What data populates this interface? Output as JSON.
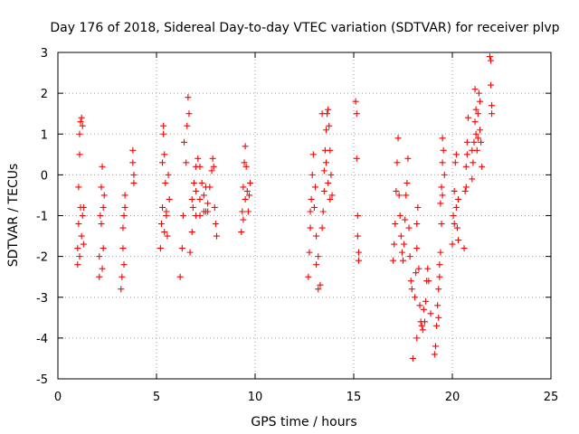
{
  "chart_data": {
    "type": "scatter",
    "title": "Day 176 of 2018, Sidereal Day-to-day VTEC variation (SDTVAR) for receiver plvp",
    "xlabel": "GPS time / hours",
    "ylabel": "SDTVAR / TECUs",
    "xlim": [
      0,
      25
    ],
    "ylim": [
      -5,
      3
    ],
    "xticks": [
      "0",
      "5",
      "10",
      "15",
      "20",
      "25"
    ],
    "yticks": [
      "-5",
      "-4",
      "-3",
      "-2",
      "-1",
      "0",
      "1",
      "2",
      "3"
    ],
    "grid": true,
    "marker": "+",
    "color": "#ff0000",
    "series": [
      {
        "name": "SDTVAR",
        "points": [
          [
            1.0,
            -2.2
          ],
          [
            1.0,
            -1.8
          ],
          [
            1.05,
            -1.2
          ],
          [
            1.05,
            -0.3
          ],
          [
            1.1,
            0.5
          ],
          [
            1.1,
            1.0
          ],
          [
            1.15,
            1.3
          ],
          [
            1.2,
            1.4
          ],
          [
            1.2,
            -1.5
          ],
          [
            1.25,
            -1.0
          ],
          [
            1.3,
            -0.8
          ],
          [
            1.3,
            -1.7
          ],
          [
            1.1,
            -2.0
          ],
          [
            1.15,
            -0.8
          ],
          [
            1.25,
            1.2
          ],
          [
            2.1,
            -2.5
          ],
          [
            2.1,
            -2.0
          ],
          [
            2.15,
            -1.0
          ],
          [
            2.2,
            -0.3
          ],
          [
            2.25,
            0.2
          ],
          [
            2.3,
            -0.8
          ],
          [
            2.3,
            -1.8
          ],
          [
            2.2,
            -1.2
          ],
          [
            2.25,
            -2.3
          ],
          [
            2.35,
            -0.5
          ],
          [
            3.2,
            -2.8
          ],
          [
            3.25,
            -2.5
          ],
          [
            3.3,
            -1.8
          ],
          [
            3.35,
            -1.0
          ],
          [
            3.4,
            -0.5
          ],
          [
            3.35,
            -2.2
          ],
          [
            3.3,
            -1.3
          ],
          [
            3.4,
            -0.8
          ],
          [
            3.8,
            0.6
          ],
          [
            3.8,
            0.3
          ],
          [
            3.85,
            0.0
          ],
          [
            3.85,
            -0.2
          ],
          [
            5.2,
            -1.8
          ],
          [
            5.25,
            -1.2
          ],
          [
            5.3,
            -0.8
          ],
          [
            5.3,
            0.3
          ],
          [
            5.35,
            1.0
          ],
          [
            5.35,
            1.2
          ],
          [
            5.4,
            0.5
          ],
          [
            5.45,
            -0.2
          ],
          [
            5.5,
            -1.0
          ],
          [
            5.55,
            -1.5
          ],
          [
            5.6,
            0.0
          ],
          [
            5.65,
            -0.6
          ],
          [
            5.5,
            -0.9
          ],
          [
            5.4,
            -1.4
          ],
          [
            6.2,
            -2.5
          ],
          [
            6.3,
            -1.8
          ],
          [
            6.35,
            -1.0
          ],
          [
            6.4,
            0.8
          ],
          [
            6.5,
            0.3
          ],
          [
            6.55,
            1.2
          ],
          [
            6.6,
            1.9
          ],
          [
            6.65,
            1.5
          ],
          [
            6.7,
            -1.9
          ],
          [
            6.8,
            -1.4
          ],
          [
            6.85,
            -0.8
          ],
          [
            6.9,
            -0.2
          ],
          [
            7.0,
            0.2
          ],
          [
            7.1,
            0.4
          ],
          [
            7.2,
            0.2
          ],
          [
            7.3,
            -0.2
          ],
          [
            7.4,
            -0.5
          ],
          [
            7.5,
            -0.9
          ],
          [
            7.6,
            -0.7
          ],
          [
            7.7,
            -0.3
          ],
          [
            7.8,
            0.1
          ],
          [
            7.85,
            0.4
          ],
          [
            7.9,
            0.2
          ],
          [
            7.95,
            -0.8
          ],
          [
            8.0,
            -1.2
          ],
          [
            8.05,
            -1.5
          ],
          [
            6.8,
            -0.6
          ],
          [
            7.0,
            -1.0
          ],
          [
            7.2,
            -1.0
          ],
          [
            7.4,
            -0.9
          ],
          [
            7.6,
            -0.9
          ],
          [
            7.0,
            -0.4
          ],
          [
            7.2,
            -0.6
          ],
          [
            7.5,
            -0.3
          ],
          [
            9.3,
            -1.4
          ],
          [
            9.35,
            -0.9
          ],
          [
            9.4,
            -0.3
          ],
          [
            9.45,
            0.3
          ],
          [
            9.5,
            0.7
          ],
          [
            9.55,
            0.2
          ],
          [
            9.6,
            -0.4
          ],
          [
            9.65,
            -0.9
          ],
          [
            9.7,
            -0.5
          ],
          [
            9.75,
            -0.2
          ],
          [
            9.5,
            -0.6
          ],
          [
            9.4,
            -1.1
          ],
          [
            12.7,
            -2.5
          ],
          [
            12.75,
            -1.9
          ],
          [
            12.8,
            -1.3
          ],
          [
            12.85,
            -0.6
          ],
          [
            12.9,
            0.0
          ],
          [
            12.95,
            0.5
          ],
          [
            13.0,
            -0.8
          ],
          [
            13.1,
            -1.5
          ],
          [
            13.2,
            -2.0
          ],
          [
            13.3,
            -2.7
          ],
          [
            13.1,
            -2.2
          ],
          [
            13.2,
            -2.8
          ],
          [
            13.05,
            -0.3
          ],
          [
            12.8,
            -0.9
          ],
          [
            13.4,
            -1.3
          ],
          [
            13.45,
            -0.9
          ],
          [
            13.5,
            0.1
          ],
          [
            13.55,
            0.6
          ],
          [
            13.6,
            1.1
          ],
          [
            13.65,
            1.5
          ],
          [
            13.7,
            1.6
          ],
          [
            13.75,
            1.2
          ],
          [
            13.8,
            0.6
          ],
          [
            13.85,
            0.0
          ],
          [
            13.9,
            -0.5
          ],
          [
            13.5,
            -0.4
          ],
          [
            13.6,
            0.3
          ],
          [
            13.7,
            -0.2
          ],
          [
            13.8,
            -0.6
          ],
          [
            13.4,
            1.5
          ],
          [
            15.1,
            1.8
          ],
          [
            15.15,
            1.5
          ],
          [
            15.15,
            0.4
          ],
          [
            15.2,
            -1.0
          ],
          [
            15.2,
            -1.5
          ],
          [
            15.25,
            -1.9
          ],
          [
            15.25,
            -2.1
          ],
          [
            17.0,
            -2.1
          ],
          [
            17.05,
            -1.7
          ],
          [
            17.1,
            -1.2
          ],
          [
            17.15,
            -0.4
          ],
          [
            17.2,
            0.3
          ],
          [
            17.25,
            0.9
          ],
          [
            17.3,
            -0.5
          ],
          [
            17.35,
            -1.0
          ],
          [
            17.4,
            -1.5
          ],
          [
            17.45,
            -1.9
          ],
          [
            17.5,
            -2.1
          ],
          [
            17.55,
            -1.7
          ],
          [
            17.6,
            -1.1
          ],
          [
            17.65,
            -0.5
          ],
          [
            17.7,
            -0.2
          ],
          [
            17.75,
            0.4
          ],
          [
            17.8,
            -1.3
          ],
          [
            17.85,
            -2.0
          ],
          [
            17.9,
            -2.6
          ],
          [
            17.95,
            -2.8
          ],
          [
            18.1,
            -3.0
          ],
          [
            18.15,
            -2.4
          ],
          [
            18.2,
            -1.8
          ],
          [
            18.2,
            -1.2
          ],
          [
            18.25,
            -0.8
          ],
          [
            18.3,
            -2.3
          ],
          [
            18.35,
            -3.2
          ],
          [
            18.4,
            -3.6
          ],
          [
            18.5,
            -3.8
          ],
          [
            18.55,
            -3.3
          ],
          [
            18.6,
            -3.6
          ],
          [
            18.65,
            -3.1
          ],
          [
            18.7,
            -2.6
          ],
          [
            18.75,
            -2.3
          ],
          [
            18.8,
            -2.6
          ],
          [
            18.9,
            -3.4
          ],
          [
            18.2,
            -4.0
          ],
          [
            18.0,
            -4.5
          ],
          [
            18.45,
            -3.7
          ],
          [
            19.1,
            -4.4
          ],
          [
            19.15,
            -4.2
          ],
          [
            19.2,
            -3.7
          ],
          [
            19.25,
            -3.2
          ],
          [
            19.3,
            -2.8
          ],
          [
            19.35,
            -2.2
          ],
          [
            19.4,
            -1.9
          ],
          [
            19.45,
            -1.2
          ],
          [
            19.4,
            -0.7
          ],
          [
            19.45,
            -0.3
          ],
          [
            19.5,
            0.3
          ],
          [
            19.5,
            0.9
          ],
          [
            19.55,
            0.6
          ],
          [
            19.6,
            0.0
          ],
          [
            19.3,
            -3.5
          ],
          [
            19.35,
            -2.5
          ],
          [
            19.5,
            -0.5
          ],
          [
            20.0,
            -1.7
          ],
          [
            20.05,
            -1.0
          ],
          [
            20.1,
            -0.4
          ],
          [
            20.15,
            0.3
          ],
          [
            20.2,
            -0.8
          ],
          [
            20.25,
            -1.3
          ],
          [
            20.3,
            -1.6
          ],
          [
            20.3,
            -0.6
          ],
          [
            20.2,
            0.5
          ],
          [
            20.1,
            -1.2
          ],
          [
            20.6,
            -1.8
          ],
          [
            20.65,
            -0.4
          ],
          [
            20.7,
            0.2
          ],
          [
            20.75,
            0.8
          ],
          [
            20.8,
            1.4
          ],
          [
            20.7,
            -0.3
          ],
          [
            20.75,
            0.5
          ],
          [
            21.0,
            -0.1
          ],
          [
            21.05,
            0.3
          ],
          [
            21.1,
            0.8
          ],
          [
            21.15,
            1.3
          ],
          [
            21.2,
            1.0
          ],
          [
            21.25,
            0.6
          ],
          [
            21.3,
            1.5
          ],
          [
            21.35,
            2.0
          ],
          [
            21.4,
            1.1
          ],
          [
            21.45,
            0.8
          ],
          [
            21.5,
            0.2
          ],
          [
            21.3,
            0.9
          ],
          [
            21.2,
            1.6
          ],
          [
            21.4,
            1.8
          ],
          [
            21.0,
            0.6
          ],
          [
            21.15,
            2.1
          ],
          [
            21.9,
            2.9
          ],
          [
            21.95,
            2.8
          ],
          [
            21.95,
            2.2
          ],
          [
            22.0,
            1.7
          ],
          [
            22.0,
            1.5
          ]
        ]
      }
    ]
  }
}
